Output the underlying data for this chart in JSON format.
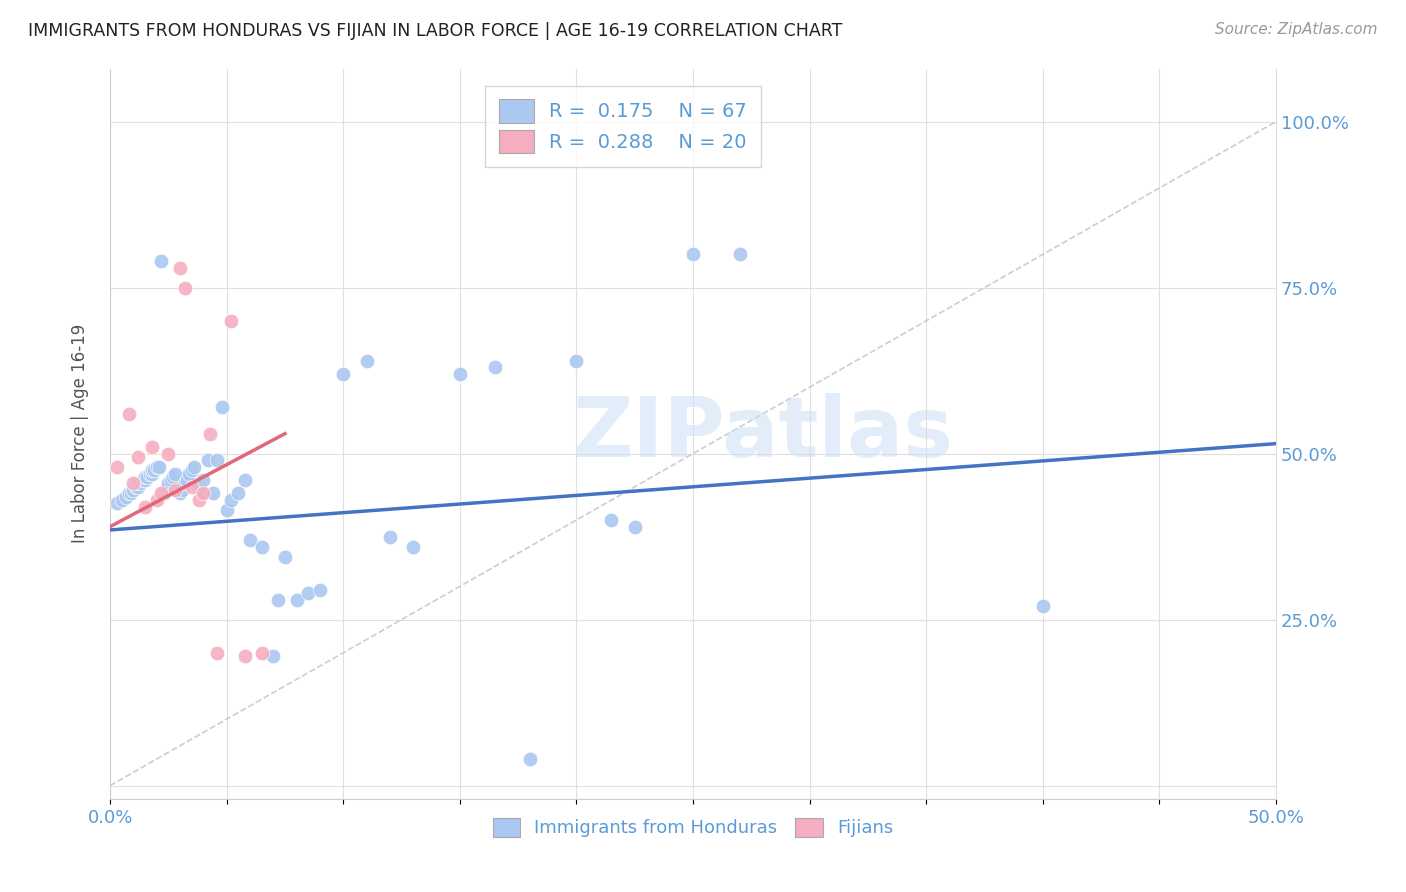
{
  "title": "IMMIGRANTS FROM HONDURAS VS FIJIAN IN LABOR FORCE | AGE 16-19 CORRELATION CHART",
  "source": "Source: ZipAtlas.com",
  "ylabel": "In Labor Force | Age 16-19",
  "xlim": [
    0.0,
    0.5
  ],
  "ylim": [
    -0.02,
    1.08
  ],
  "yticks": [
    0.0,
    0.25,
    0.5,
    0.75,
    1.0
  ],
  "ytick_labels": [
    "",
    "25.0%",
    "50.0%",
    "75.0%",
    "100.0%"
  ],
  "xticks": [
    0.0,
    0.05,
    0.1,
    0.15,
    0.2,
    0.25,
    0.3,
    0.35,
    0.4,
    0.45,
    0.5
  ],
  "xtick_labels": [
    "0.0%",
    "",
    "",
    "",
    "",
    "",
    "",
    "",
    "",
    "",
    "50.0%"
  ],
  "background_color": "#ffffff",
  "watermark_text": "ZIPatlas",
  "blue_color": "#aac8f0",
  "pink_color": "#f5aec0",
  "blue_line_color": "#4472c4",
  "pink_line_color": "#e06878",
  "diagonal_line_color": "#c8c8c8",
  "grid_color": "#e0e0e0",
  "tick_label_color": "#5b9bd5",
  "legend_R1": "R =  0.175",
  "legend_N1": "N = 67",
  "legend_R2": "R =  0.288",
  "legend_N2": "N = 20",
  "blue_scatter_x": [
    0.003,
    0.005,
    0.007,
    0.008,
    0.009,
    0.01,
    0.01,
    0.011,
    0.012,
    0.012,
    0.013,
    0.014,
    0.015,
    0.015,
    0.016,
    0.017,
    0.018,
    0.018,
    0.019,
    0.02,
    0.021,
    0.022,
    0.023,
    0.024,
    0.025,
    0.025,
    0.026,
    0.027,
    0.028,
    0.03,
    0.031,
    0.032,
    0.033,
    0.034,
    0.035,
    0.036,
    0.038,
    0.04,
    0.042,
    0.044,
    0.046,
    0.048,
    0.05,
    0.052,
    0.055,
    0.058,
    0.06,
    0.065,
    0.07,
    0.072,
    0.075,
    0.08,
    0.085,
    0.09,
    0.1,
    0.11,
    0.12,
    0.13,
    0.15,
    0.165,
    0.18,
    0.2,
    0.215,
    0.225,
    0.25,
    0.27,
    0.4
  ],
  "blue_scatter_y": [
    0.425,
    0.43,
    0.435,
    0.44,
    0.44,
    0.445,
    0.445,
    0.45,
    0.45,
    0.455,
    0.455,
    0.46,
    0.46,
    0.465,
    0.465,
    0.47,
    0.47,
    0.475,
    0.475,
    0.48,
    0.48,
    0.79,
    0.44,
    0.445,
    0.45,
    0.455,
    0.46,
    0.465,
    0.47,
    0.44,
    0.445,
    0.455,
    0.46,
    0.47,
    0.475,
    0.48,
    0.45,
    0.46,
    0.49,
    0.44,
    0.49,
    0.57,
    0.415,
    0.43,
    0.44,
    0.46,
    0.37,
    0.36,
    0.195,
    0.28,
    0.345,
    0.28,
    0.29,
    0.295,
    0.62,
    0.64,
    0.375,
    0.36,
    0.62,
    0.63,
    0.04,
    0.64,
    0.4,
    0.39,
    0.8,
    0.8,
    0.27
  ],
  "pink_scatter_x": [
    0.003,
    0.008,
    0.01,
    0.012,
    0.015,
    0.018,
    0.02,
    0.022,
    0.025,
    0.028,
    0.03,
    0.032,
    0.035,
    0.038,
    0.04,
    0.043,
    0.046,
    0.052,
    0.058,
    0.065
  ],
  "pink_scatter_y": [
    0.48,
    0.56,
    0.455,
    0.495,
    0.42,
    0.51,
    0.43,
    0.44,
    0.5,
    0.445,
    0.78,
    0.75,
    0.45,
    0.43,
    0.44,
    0.53,
    0.2,
    0.7,
    0.195,
    0.2
  ],
  "blue_trend_x": [
    0.0,
    0.5
  ],
  "blue_trend_y": [
    0.385,
    0.515
  ],
  "pink_trend_x": [
    0.0,
    0.075
  ],
  "pink_trend_y": [
    0.39,
    0.53
  ]
}
